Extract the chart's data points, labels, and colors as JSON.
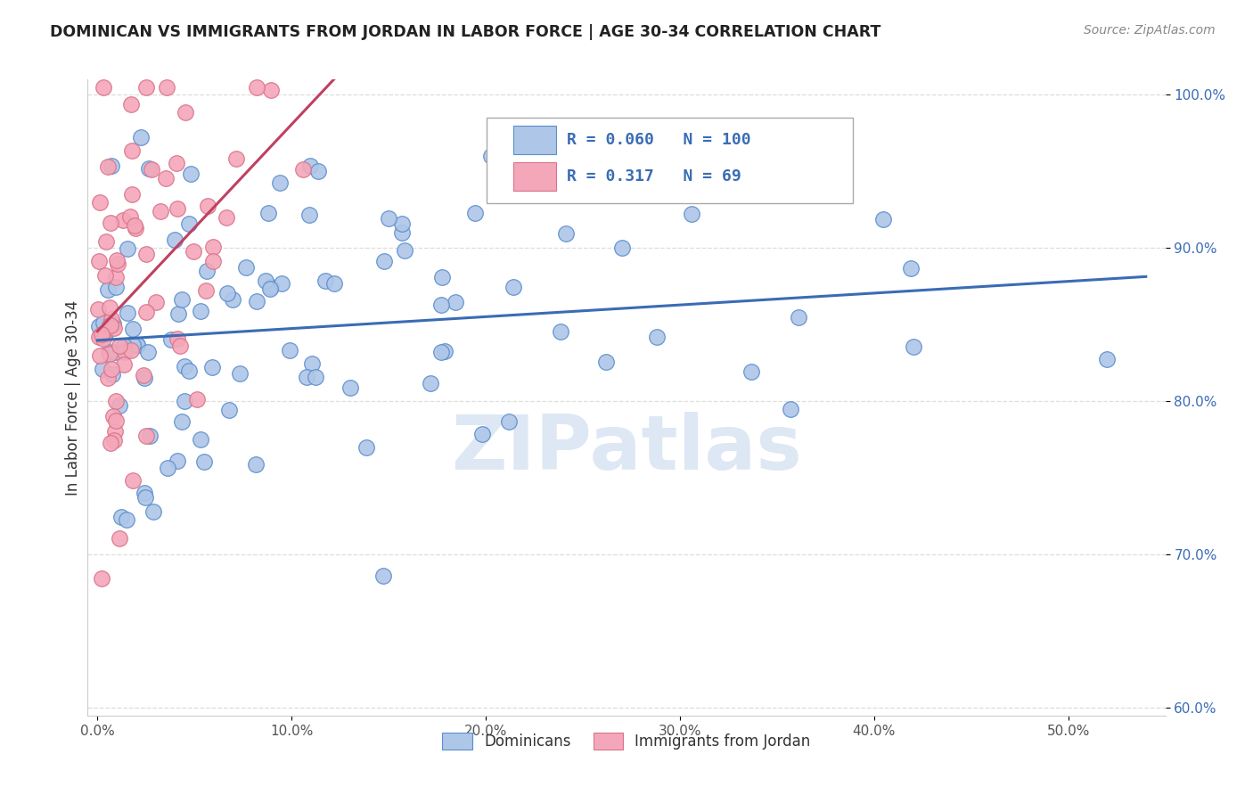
{
  "title": "DOMINICAN VS IMMIGRANTS FROM JORDAN IN LABOR FORCE | AGE 30-34 CORRELATION CHART",
  "source": "Source: ZipAtlas.com",
  "ylabel": "In Labor Force | Age 30-34",
  "blue_R": 0.06,
  "blue_N": 100,
  "pink_R": 0.317,
  "pink_N": 69,
  "legend_labels": [
    "Dominicans",
    "Immigrants from Jordan"
  ],
  "blue_color": "#aec6e8",
  "pink_color": "#f4a7b9",
  "blue_edge_color": "#5b8ecc",
  "pink_edge_color": "#d9748a",
  "blue_line_color": "#3a6cb5",
  "pink_line_color": "#c04060",
  "R_N_text_color": "#3a6cb5",
  "title_color": "#222222",
  "grid_color": "#dddddd",
  "background_color": "#ffffff",
  "xlim": [
    -0.005,
    0.55
  ],
  "ylim": [
    0.595,
    1.01
  ],
  "x_ticks": [
    0.0,
    0.1,
    0.2,
    0.3,
    0.4,
    0.5
  ],
  "y_ticks": [
    0.6,
    0.7,
    0.8,
    0.9,
    1.0
  ],
  "watermark": "ZIPatlas",
  "watermark_color": "#c8d8ee"
}
